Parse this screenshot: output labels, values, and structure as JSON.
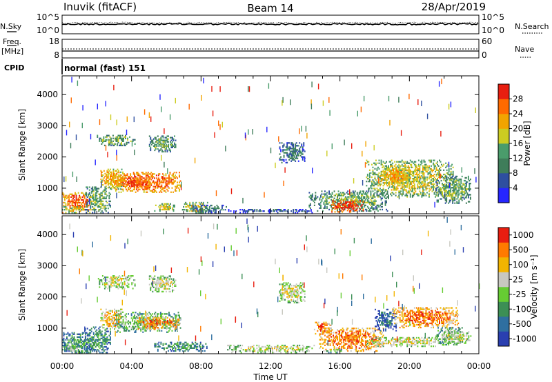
{
  "header": {
    "station": "Inuvik (fitACF)",
    "beam": "Beam 14",
    "date": "28/Apr/2019"
  },
  "top_panels": {
    "nsky_label": "N.Sky",
    "nsky_ticks": [
      "10^5",
      "10^0"
    ],
    "nsearch_label": "N.Search",
    "nsearch_ticks": [
      "10^5",
      "10^0"
    ],
    "freq_label": "Freq.",
    "freq_unit": "[MHz]",
    "freq_ticks": [
      "18",
      "8"
    ],
    "nave_label": "Nave",
    "nave_ticks": [
      "60",
      "0"
    ],
    "cpid_label": "CPID",
    "cpid_value": "normal (fast) 151"
  },
  "x_axis": {
    "label": "Time UT",
    "ticks": [
      "00:00",
      "04:00",
      "08:00",
      "12:00",
      "16:00",
      "20:00",
      "00:00"
    ]
  },
  "chart_data": [
    {
      "type": "heatmap",
      "panel": "power",
      "ylabel": "Slant Range [km]",
      "yticks": [
        1000,
        2000,
        3000,
        4000
      ],
      "ylim": [
        180,
        4600
      ],
      "xlim_hours": [
        0,
        24
      ],
      "colorbar_label": "Power [dB]",
      "colorbar_ticks": [
        "4",
        "8",
        "12",
        "16",
        "20",
        "24",
        "28"
      ],
      "colorscale": [
        "#2626ff",
        "#2e4fa0",
        "#3f7d5a",
        "#4a9c6b",
        "#cccc22",
        "#f2a400",
        "#ff6a00",
        "#e81e10"
      ],
      "regions": [
        {
          "t0": 0.0,
          "t1": 1.7,
          "r0": 200,
          "r1": 850,
          "level": 6
        },
        {
          "t0": 0.0,
          "t1": 1.5,
          "r0": 200,
          "r1": 400,
          "level": 4
        },
        {
          "t0": 1.3,
          "t1": 2.8,
          "r0": 200,
          "r1": 1050,
          "level": 3
        },
        {
          "t0": 2.2,
          "t1": 3.5,
          "r0": 950,
          "r1": 1600,
          "level": 5
        },
        {
          "t0": 3.0,
          "t1": 6.8,
          "r0": 850,
          "r1": 1500,
          "level": 6
        },
        {
          "t0": 3.5,
          "t1": 5.0,
          "r0": 1000,
          "r1": 1300,
          "level": 7
        },
        {
          "t0": 2.0,
          "t1": 4.2,
          "r0": 2350,
          "r1": 2700,
          "level": 3
        },
        {
          "t0": 5.0,
          "t1": 6.5,
          "r0": 2150,
          "r1": 2650,
          "level": 3
        },
        {
          "t0": 5.3,
          "t1": 6.5,
          "r0": 250,
          "r1": 500,
          "level": 4
        },
        {
          "t0": 6.9,
          "t1": 8.4,
          "r0": 200,
          "r1": 550,
          "level": 4
        },
        {
          "t0": 7.5,
          "t1": 9.5,
          "r0": 200,
          "r1": 450,
          "level": 2
        },
        {
          "t0": 9.5,
          "t1": 14.5,
          "r0": 200,
          "r1": 320,
          "level": 1
        },
        {
          "t0": 12.5,
          "t1": 14.0,
          "r0": 1800,
          "r1": 2450,
          "level": 2
        },
        {
          "t0": 14.2,
          "t1": 18.8,
          "r0": 250,
          "r1": 900,
          "level": 3
        },
        {
          "t0": 15.5,
          "t1": 17.3,
          "r0": 220,
          "r1": 600,
          "level": 7
        },
        {
          "t0": 17.5,
          "t1": 22.5,
          "r0": 700,
          "r1": 1900,
          "level": 4
        },
        {
          "t0": 18.5,
          "t1": 20.0,
          "r0": 1100,
          "r1": 1700,
          "level": 5
        },
        {
          "t0": 21.5,
          "t1": 23.5,
          "r0": 500,
          "r1": 1400,
          "level": 3
        }
      ]
    },
    {
      "type": "heatmap",
      "panel": "velocity",
      "ylabel": "Slant Range [km]",
      "yticks": [
        1000,
        2000,
        3000,
        4000
      ],
      "ylim": [
        180,
        4600
      ],
      "xlim_hours": [
        0,
        24
      ],
      "colorbar_label": "Velocity [m s⁻¹]",
      "colorbar_ticks": [
        "1000",
        "500",
        "100",
        "25",
        "-25",
        "-100",
        "-500",
        "-1000"
      ],
      "colorscale": [
        "#2a3fb0",
        "#2f6fa0",
        "#3c8f55",
        "#66cc33",
        "#c8c8c0",
        "#f2b400",
        "#ff7a00",
        "#e81e10"
      ],
      "regions": [
        {
          "t0": 0.0,
          "t1": 1.7,
          "r0": 200,
          "r1": 850,
          "level": 2
        },
        {
          "t0": 0.0,
          "t1": 1.2,
          "r0": 200,
          "r1": 500,
          "level": 3
        },
        {
          "t0": 1.3,
          "t1": 2.8,
          "r0": 200,
          "r1": 1050,
          "level": 2
        },
        {
          "t0": 2.2,
          "t1": 3.5,
          "r0": 950,
          "r1": 1600,
          "level": 5
        },
        {
          "t0": 3.0,
          "t1": 6.8,
          "r0": 850,
          "r1": 1500,
          "level": 3
        },
        {
          "t0": 4.3,
          "t1": 6.8,
          "r0": 950,
          "r1": 1350,
          "level": 6
        },
        {
          "t0": 2.0,
          "t1": 4.2,
          "r0": 2250,
          "r1": 2700,
          "level": 4
        },
        {
          "t0": 5.0,
          "t1": 6.5,
          "r0": 2150,
          "r1": 2650,
          "level": 4
        },
        {
          "t0": 5.3,
          "t1": 8.3,
          "r0": 250,
          "r1": 550,
          "level": 2
        },
        {
          "t0": 9.5,
          "t1": 14.5,
          "r0": 200,
          "r1": 450,
          "level": 4
        },
        {
          "t0": 12.5,
          "t1": 14.0,
          "r0": 1800,
          "r1": 2450,
          "level": 4
        },
        {
          "t0": 14.5,
          "t1": 15.5,
          "r0": 800,
          "r1": 1200,
          "level": 6
        },
        {
          "t0": 14.8,
          "t1": 18.5,
          "r0": 250,
          "r1": 1000,
          "level": 6
        },
        {
          "t0": 15.2,
          "t1": 16.2,
          "r0": 200,
          "r1": 320,
          "level": 3
        },
        {
          "t0": 17.5,
          "t1": 22.0,
          "r0": 400,
          "r1": 700,
          "level": 4
        },
        {
          "t0": 18.0,
          "t1": 19.2,
          "r0": 900,
          "r1": 1600,
          "level": 1
        },
        {
          "t0": 19.0,
          "t1": 22.8,
          "r0": 1000,
          "r1": 1650,
          "level": 6
        },
        {
          "t0": 21.5,
          "t1": 23.0,
          "r0": 450,
          "r1": 1000,
          "level": 3
        },
        {
          "t0": 22.0,
          "t1": 23.5,
          "r0": 500,
          "r1": 900,
          "level": 4
        }
      ]
    }
  ]
}
